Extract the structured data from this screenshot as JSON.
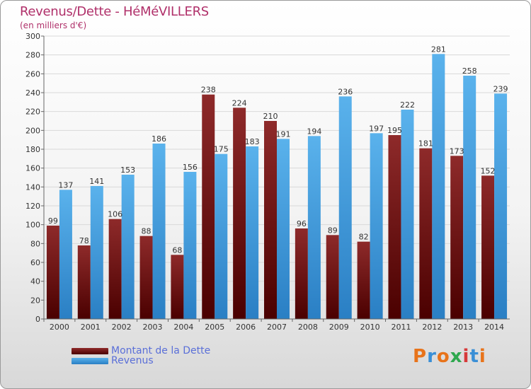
{
  "title": "Revenus/Dette - HéMéVILLERS",
  "subtitle": "(en milliers d'€)",
  "logo": {
    "text": "Proxiti"
  },
  "colors": {
    "debt": "#7a1a1a",
    "revenue": "#4aa3e0",
    "title": "#b0306a",
    "legend_text": "#5a6fd8"
  },
  "chart_data": {
    "type": "bar",
    "categories": [
      "2000",
      "2001",
      "2002",
      "2003",
      "2004",
      "2005",
      "2006",
      "2007",
      "2008",
      "2009",
      "2010",
      "2011",
      "2012",
      "2013",
      "2014"
    ],
    "series": [
      {
        "name": "Montant de la Dette",
        "values": [
          99,
          78,
          106,
          88,
          68,
          238,
          224,
          210,
          96,
          89,
          82,
          195,
          181,
          173,
          152
        ]
      },
      {
        "name": "Revenus",
        "values": [
          137,
          141,
          153,
          186,
          156,
          175,
          183,
          191,
          194,
          236,
          197,
          222,
          281,
          258,
          239
        ]
      }
    ],
    "ylim": [
      0,
      300
    ],
    "yticks": [
      0,
      20,
      40,
      60,
      80,
      100,
      120,
      140,
      160,
      180,
      200,
      220,
      240,
      260,
      280,
      300
    ],
    "grid": true,
    "legend": "bottom-left"
  }
}
